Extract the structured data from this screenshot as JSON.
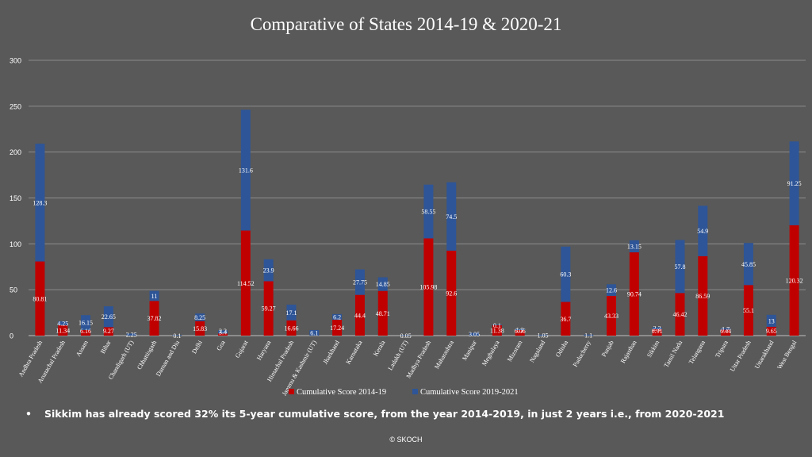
{
  "chart_data": {
    "type": "bar",
    "stacked": true,
    "title": "Comparative of States 2014-19 & 2020-21",
    "ylim": [
      0,
      300
    ],
    "yticks": [
      0,
      50,
      100,
      150,
      200,
      250,
      300
    ],
    "grid": true,
    "legend_position": "bottom",
    "categories": [
      "Andhra Pradesh",
      "Arunachal Pradesh",
      "Assam",
      "Bihar",
      "Chandigarh (UT)",
      "Chhattisgarh",
      "Daman and Diu",
      "Delhi",
      "Goa",
      "Gujarat",
      "Haryana",
      "Himachal Pradesh",
      "Jammu & Kashmir (UT)",
      "Jharkhand",
      "Karnataka",
      "Kerala",
      "Ladakh (UT)",
      "Madhya Pradesh",
      "Maharashtra",
      "Manipur",
      "Meghalaya",
      "Mizoram",
      "Nagaland",
      "Odisha",
      "Puducherry",
      "Punjab",
      "Rajasthan",
      "Sikkim",
      "Tamil Nadu",
      "Telangana",
      "Tripura",
      "Uttar Pradesh",
      "Uttarakhand",
      "West Bengal"
    ],
    "series": [
      {
        "name": "Cumulative Score 2014-19",
        "color": "#c00000",
        "values": [
          80.81,
          11.34,
          6.16,
          9.27,
          null,
          37.82,
          null,
          15.83,
          2.3,
          114.52,
          59.27,
          16.66,
          null,
          17.24,
          44.4,
          48.71,
          null,
          105.98,
          92.6,
          null,
          11.38,
          6.06,
          null,
          36.7,
          null,
          43.33,
          90.74,
          6.91,
          46.42,
          86.59,
          6.44,
          55.1,
          9.65,
          120.32
        ],
        "labels": [
          "80.81",
          "11.34",
          "6.16",
          "9.27",
          null,
          "37.82",
          null,
          "15.83",
          "2.3",
          "114.52",
          "59.27",
          "16.66",
          null,
          "17.24",
          "44.4",
          "48.71",
          null,
          "105.98",
          "92.6",
          null,
          "11.38",
          "6.06",
          null,
          "36.7",
          null,
          "43.33",
          "90.74",
          "6.91",
          "46.42",
          "86.59",
          "6.44",
          "55.1",
          "9.65",
          "120.32"
        ]
      },
      {
        "name": "Cumulative Score 2019-2021",
        "color": "#2e5597",
        "values": [
          128.3,
          4.25,
          16.15,
          22.65,
          2.25,
          11,
          0.1,
          8.25,
          3.4,
          131.6,
          23.9,
          17.1,
          6.1,
          6.2,
          27.75,
          14.85,
          0.05,
          58.55,
          74.5,
          3.05,
          0.1,
          1.2,
          1.05,
          60.3,
          1.1,
          12.6,
          13.15,
          2.2,
          57.8,
          54.9,
          1.7,
          45.85,
          13,
          91.25
        ],
        "labels": [
          "128.3",
          "4.25",
          "16.15",
          "22.65",
          "2.25",
          "11",
          "0.1",
          "8.25",
          "3.4",
          "131.6",
          "23.9",
          "17.1",
          "6.1",
          "6.2",
          "27.75",
          "14.85",
          "0.05",
          "58.55",
          "74.5",
          "3.05",
          "0.1",
          "1.2",
          "1.05",
          "60.3",
          "1.1",
          "12.6",
          "13.15",
          "2.2",
          "57.8",
          "54.9",
          "1.7",
          "45.85",
          "13",
          "91.25"
        ]
      }
    ]
  },
  "note": {
    "bullet": "•",
    "text": "Sikkim  has already scored 32% its 5-year cumulative score, from the year 2014-2019,  in just 2 years i.e., from 2020-2021"
  },
  "footer": {
    "copyright": "© SKOCH"
  }
}
